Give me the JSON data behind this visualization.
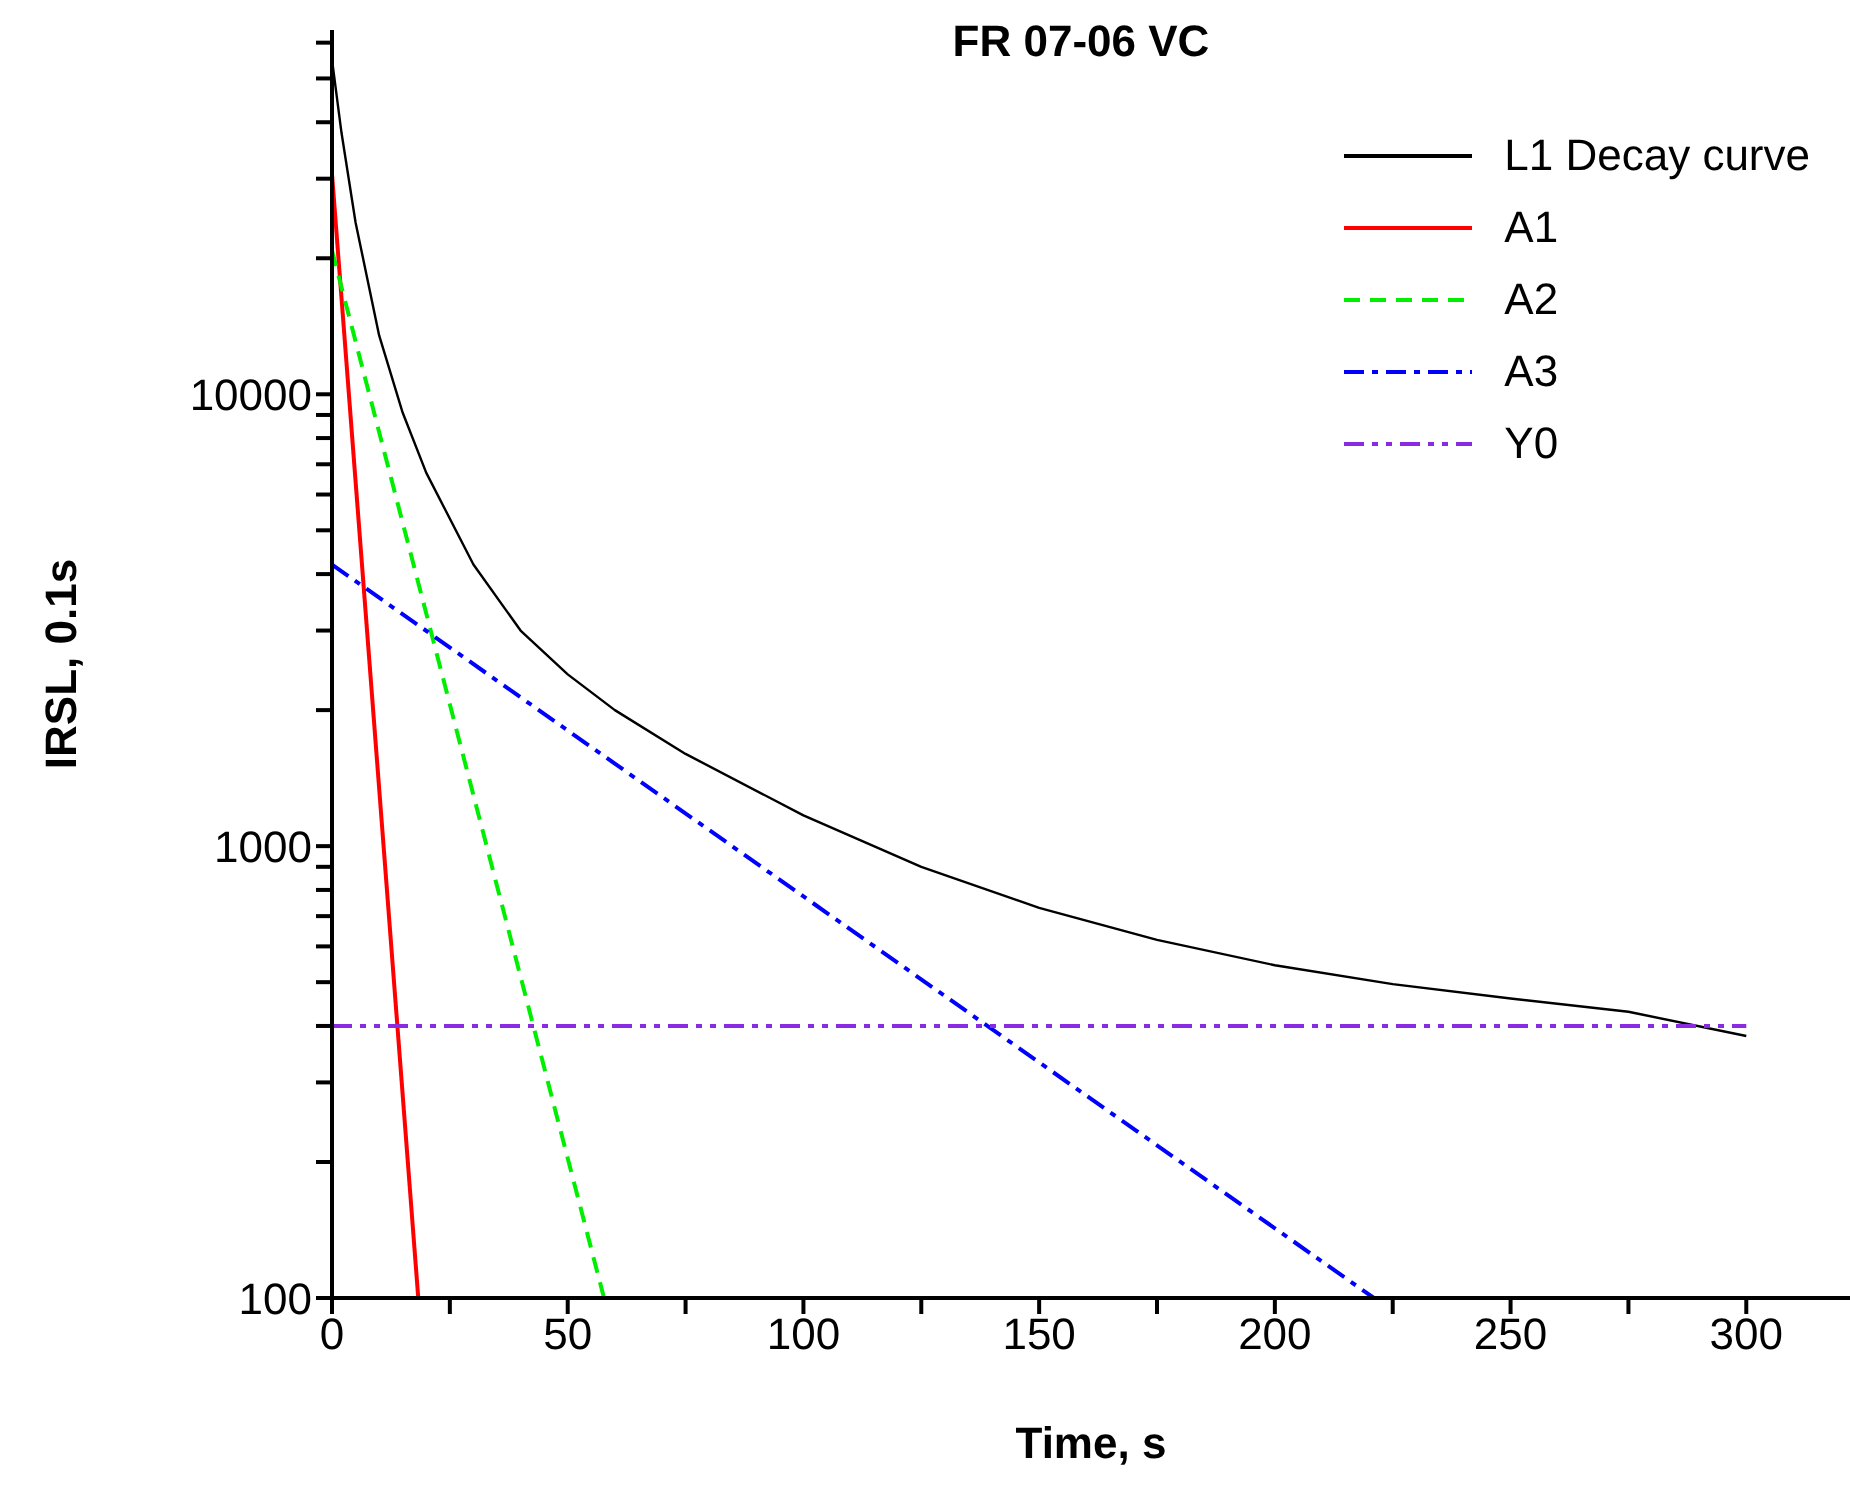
{
  "chart_data": {
    "type": "line",
    "title": "FR 07-06 VC",
    "xlabel": "Time, s",
    "ylabel": "IRSL, 0.1s",
    "log": "y",
    "xlim": [
      0,
      322
    ],
    "ylim": [
      100,
      64000
    ],
    "xticks": [
      0,
      {
        "value": 25,
        "label": null
      },
      50,
      {
        "value": 75,
        "label": null
      },
      100,
      {
        "value": 125,
        "label": null
      },
      150,
      {
        "value": 175,
        "label": null
      },
      200,
      {
        "value": 225,
        "label": null
      },
      250,
      {
        "value": 275,
        "label": null
      },
      300
    ],
    "yticks": [
      100,
      {
        "value": 200,
        "label": null
      },
      {
        "value": 300,
        "label": null
      },
      {
        "value": 400,
        "label": null
      },
      {
        "value": 500,
        "label": null
      },
      {
        "value": 600,
        "label": null
      },
      {
        "value": 700,
        "label": null
      },
      {
        "value": 800,
        "label": null
      },
      {
        "value": 900,
        "label": null
      },
      1000,
      {
        "value": 2000,
        "label": null
      },
      {
        "value": 3000,
        "label": null
      },
      {
        "value": 4000,
        "label": null
      },
      {
        "value": 5000,
        "label": null
      },
      {
        "value": 6000,
        "label": null
      },
      {
        "value": 7000,
        "label": null
      },
      {
        "value": 8000,
        "label": null
      },
      {
        "value": 9000,
        "label": null
      },
      10000,
      {
        "value": 20000,
        "label": null
      },
      {
        "value": 30000,
        "label": null
      },
      {
        "value": 40000,
        "label": null
      },
      {
        "value": 50000,
        "label": null
      },
      {
        "value": 60000,
        "label": null
      }
    ],
    "legend": "top right",
    "grid": false,
    "series": [
      {
        "name": "L1 Decay curve",
        "color": "#000000",
        "line_style": "solid",
        "x": [
          0,
          2,
          5,
          10,
          15,
          20,
          30,
          40,
          50,
          60,
          75,
          100,
          125,
          150,
          175,
          200,
          225,
          250,
          275,
          300
        ],
        "values": [
          55000,
          38000,
          24000,
          13500,
          9100,
          6700,
          4200,
          3000,
          2400,
          2000,
          1600,
          1170,
          900,
          730,
          620,
          545,
          495,
          460,
          430,
          380
        ]
      },
      {
        "name": "A1",
        "color": "#ff0000",
        "line_style": "solid",
        "x": [
          0,
          18.3
        ],
        "values": [
          30700,
          100
        ]
      },
      {
        "name": "A2",
        "color": "#00ee00",
        "line_style": "dashed",
        "x": [
          0,
          57.7
        ],
        "values": [
          20800,
          100
        ]
      },
      {
        "name": "A3",
        "color": "#0000ff",
        "line_style": "dashdot",
        "x": [
          0,
          221
        ],
        "values": [
          4200,
          100
        ]
      },
      {
        "name": "Y0",
        "color": "#8a2be2",
        "line_style": "dashdotdot",
        "x": [
          0,
          300
        ],
        "values": [
          400,
          400
        ]
      }
    ]
  }
}
